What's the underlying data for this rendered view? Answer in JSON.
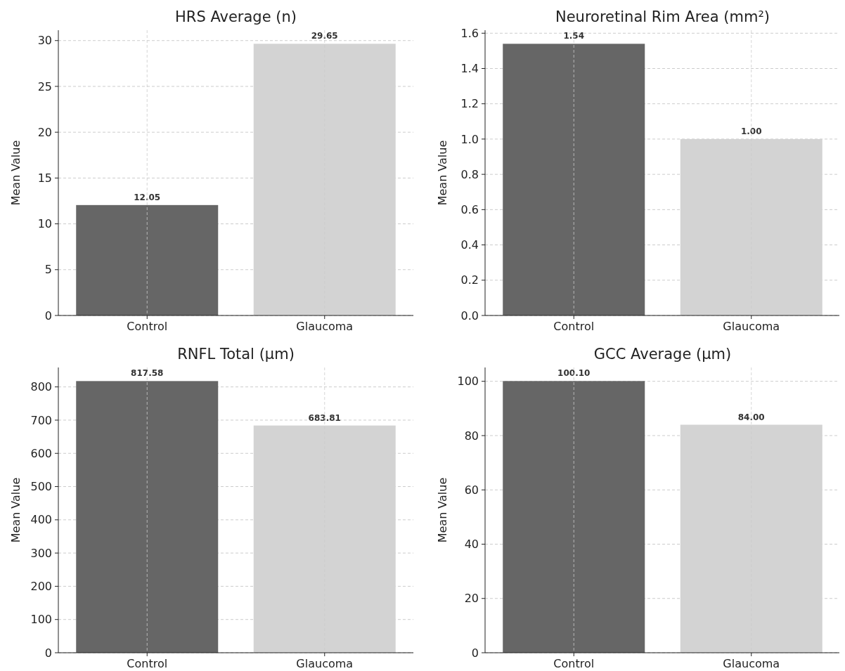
{
  "chart_data": [
    {
      "type": "bar",
      "title": "HRS Average (n)",
      "ylabel": "Mean Value",
      "categories": [
        "Control",
        "Glaucoma"
      ],
      "values": [
        12.05,
        29.65
      ],
      "colors": [
        "#666666",
        "#d3d3d3"
      ],
      "value_labels": [
        "12.05",
        "29.65"
      ],
      "ylim": [
        0,
        31.13
      ],
      "yticks": [
        0,
        5,
        10,
        15,
        20,
        25,
        30
      ],
      "grid": true
    },
    {
      "type": "bar",
      "title": "Neuroretinal Rim Area (mm²)",
      "ylabel": "Mean Value",
      "categories": [
        "Control",
        "Glaucoma"
      ],
      "values": [
        1.54,
        1.0
      ],
      "colors": [
        "#666666",
        "#d3d3d3"
      ],
      "value_labels": [
        "1.54",
        "1.00"
      ],
      "ylim": [
        0,
        1.617
      ],
      "yticks": [
        {
          "value": 0,
          "label": "0.0"
        },
        {
          "value": 0.2,
          "label": "0.2"
        },
        {
          "value": 0.4,
          "label": "0.4"
        },
        {
          "value": 0.6,
          "label": "0.6"
        },
        {
          "value": 0.8,
          "label": "0.8"
        },
        {
          "value": 1,
          "label": "1.0"
        },
        {
          "value": 1.2,
          "label": "1.2"
        },
        {
          "value": 1.4,
          "label": "1.4"
        },
        {
          "value": 1.6,
          "label": "1.6"
        }
      ],
      "grid": true
    },
    {
      "type": "bar",
      "title": "RNFL Total (µm)",
      "ylabel": "Mean Value",
      "categories": [
        "Control",
        "Glaucoma"
      ],
      "values": [
        817.58,
        683.81
      ],
      "colors": [
        "#666666",
        "#d3d3d3"
      ],
      "value_labels": [
        "817.58",
        "683.81"
      ],
      "ylim": [
        0,
        858.5
      ],
      "yticks": [
        0,
        100,
        200,
        300,
        400,
        500,
        600,
        700,
        800
      ],
      "grid": true
    },
    {
      "type": "bar",
      "title": "GCC Average (µm)",
      "ylabel": "Mean Value",
      "categories": [
        "Control",
        "Glaucoma"
      ],
      "values": [
        100.1,
        84.0
      ],
      "colors": [
        "#666666",
        "#d3d3d3"
      ],
      "value_labels": [
        "100.10",
        "84.00"
      ],
      "ylim": [
        0,
        105.1
      ],
      "yticks": [
        0,
        20,
        40,
        60,
        80,
        100
      ],
      "grid": true
    }
  ]
}
